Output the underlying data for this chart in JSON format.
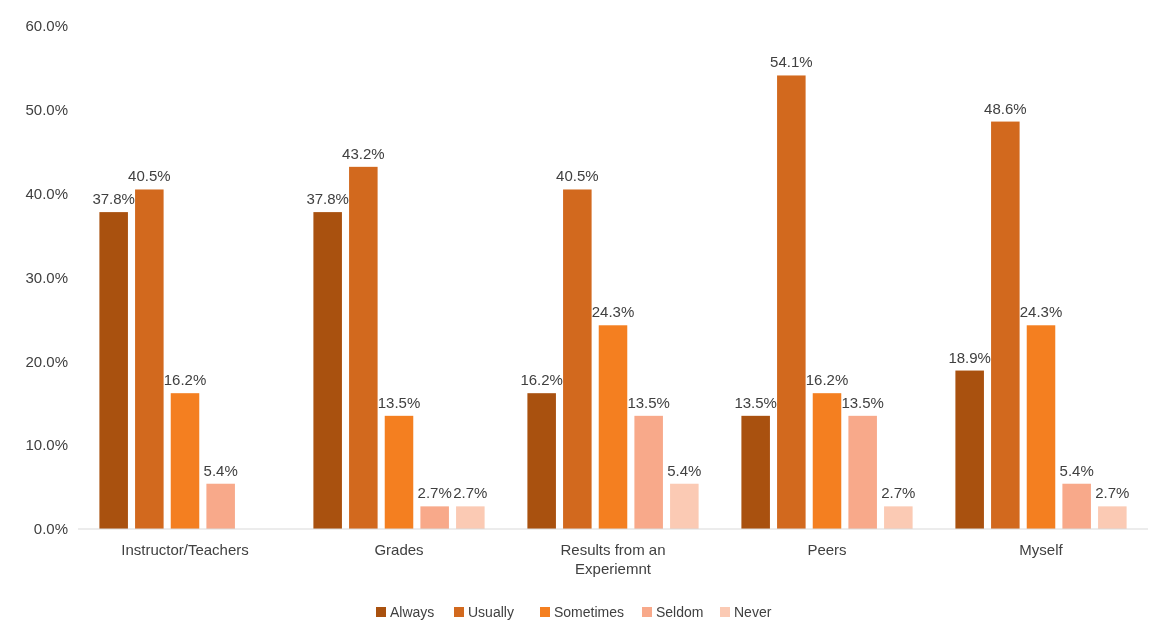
{
  "chart_data": {
    "type": "bar",
    "categories": [
      "Instructor/Teachers",
      "Grades",
      "Results from an Experiemnt",
      "Peers",
      "Myself"
    ],
    "series": [
      {
        "name": "Always",
        "color": "#a9510f",
        "values": [
          37.8,
          37.8,
          16.2,
          13.5,
          18.9
        ],
        "value_labels": [
          "37.8%",
          "37.8%",
          "16.2%",
          "13.5%",
          "18.9%"
        ]
      },
      {
        "name": "Usually",
        "color": "#d2691e",
        "values": [
          40.5,
          43.2,
          40.5,
          54.1,
          48.6
        ],
        "value_labels": [
          "40.5%",
          "43.2%",
          "40.5%",
          "54.1%",
          "48.6%"
        ]
      },
      {
        "name": "Sometimes",
        "color": "#f47f20",
        "values": [
          16.2,
          13.5,
          24.3,
          16.2,
          24.3
        ],
        "value_labels": [
          "16.2%",
          "13.5%",
          "24.3%",
          "16.2%",
          "24.3%"
        ]
      },
      {
        "name": "Seldom",
        "color": "#f8a98a",
        "values": [
          5.4,
          2.7,
          13.5,
          13.5,
          5.4
        ],
        "value_labels": [
          "5.4%",
          "2.7%",
          "13.5%",
          "13.5%",
          "5.4%"
        ]
      },
      {
        "name": "Never",
        "color": "#fbcab4",
        "values": [
          null,
          2.7,
          5.4,
          2.7,
          2.7
        ],
        "value_labels": [
          null,
          "2.7%",
          "5.4%",
          "2.7%",
          "2.7%"
        ]
      }
    ],
    "ylim": [
      0,
      60
    ],
    "yticks": [
      {
        "value": 0,
        "label": "0.0%"
      },
      {
        "value": 10,
        "label": "10.0%"
      },
      {
        "value": 20,
        "label": "20.0%"
      },
      {
        "value": 30,
        "label": "30.0%"
      },
      {
        "value": 40,
        "label": "40.0%"
      },
      {
        "value": 50,
        "label": "50.0%"
      },
      {
        "value": 60,
        "label": "60.0%"
      }
    ],
    "legend": "bottom"
  }
}
